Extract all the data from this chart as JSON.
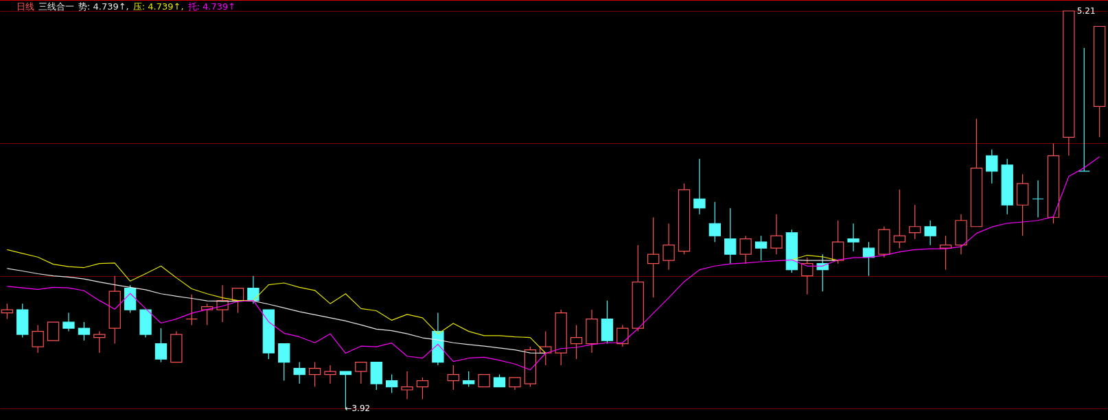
{
  "chart_data": {
    "type": "candlestick",
    "title": "日线",
    "subtitle": "三线合一",
    "annotations": [
      "势: 4.739↑,",
      "压: 4.739↑,",
      "托: 4.739↑",
      "←3.92",
      "5.21"
    ],
    "categories": [
      null,
      null,
      null,
      null,
      null,
      null,
      null,
      null,
      null,
      null,
      null,
      null,
      null,
      null,
      null,
      null,
      null,
      null,
      null,
      null,
      null,
      null,
      null,
      null,
      null,
      null,
      null,
      null,
      null,
      null,
      null,
      null,
      null,
      null,
      null,
      null,
      null,
      null,
      null,
      null,
      null,
      null,
      null,
      null,
      null,
      null,
      null,
      null,
      null,
      null,
      null,
      null,
      null,
      null,
      null,
      null,
      null,
      null,
      null,
      null,
      null,
      null,
      null,
      null,
      null,
      null,
      null,
      null,
      null,
      null,
      null,
      null
    ],
    "ohlc": [
      [
        4.23,
        4.26,
        4.21,
        4.24
      ],
      [
        4.24,
        4.26,
        4.15,
        4.16
      ],
      [
        4.12,
        4.19,
        4.1,
        4.17
      ],
      [
        4.14,
        4.2,
        4.14,
        4.2
      ],
      [
        4.2,
        4.23,
        4.17,
        4.18
      ],
      [
        4.18,
        4.2,
        4.14,
        4.16
      ],
      [
        4.15,
        4.17,
        4.1,
        4.16
      ],
      [
        4.18,
        4.35,
        4.13,
        4.3
      ],
      [
        4.31,
        4.32,
        4.23,
        4.24
      ],
      [
        4.24,
        4.24,
        4.15,
        4.16
      ],
      [
        4.13,
        4.18,
        4.07,
        4.08
      ],
      [
        4.07,
        4.17,
        4.07,
        4.16
      ],
      [
        4.21,
        4.29,
        4.19,
        4.21
      ],
      [
        4.24,
        4.26,
        4.19,
        4.25
      ],
      [
        4.24,
        4.32,
        4.2,
        4.27
      ],
      [
        4.27,
        4.31,
        4.23,
        4.31
      ],
      [
        4.31,
        4.35,
        4.26,
        4.27
      ],
      [
        4.24,
        4.24,
        4.08,
        4.1
      ],
      [
        4.13,
        4.13,
        4.01,
        4.07
      ],
      [
        4.05,
        4.07,
        4.0,
        4.03
      ],
      [
        4.03,
        4.07,
        3.99,
        4.05
      ],
      [
        4.03,
        4.06,
        4.0,
        4.04
      ],
      [
        4.04,
        4.04,
        3.92,
        4.03
      ],
      [
        4.04,
        4.07,
        4.0,
        4.07
      ],
      [
        4.07,
        4.07,
        3.98,
        4.0
      ],
      [
        4.01,
        4.03,
        3.97,
        3.99
      ],
      [
        3.98,
        4.04,
        3.95,
        3.99
      ],
      [
        3.99,
        4.02,
        3.95,
        4.01
      ],
      [
        4.17,
        4.23,
        4.06,
        4.07
      ],
      [
        4.01,
        4.06,
        3.98,
        4.03
      ],
      [
        4.01,
        4.04,
        3.99,
        4.0
      ],
      [
        3.99,
        4.03,
        3.99,
        4.03
      ],
      [
        4.02,
        4.03,
        3.99,
        3.99
      ],
      [
        3.99,
        4.02,
        3.98,
        4.02
      ],
      [
        4.0,
        4.12,
        3.99,
        4.11
      ],
      [
        4.1,
        4.17,
        4.06,
        4.12
      ],
      [
        4.1,
        4.24,
        4.06,
        4.23
      ],
      [
        4.13,
        4.19,
        4.08,
        4.15
      ],
      [
        4.13,
        4.24,
        4.1,
        4.21
      ],
      [
        4.21,
        4.27,
        4.13,
        4.14
      ],
      [
        4.13,
        4.19,
        4.12,
        4.18
      ],
      [
        4.18,
        4.45,
        4.17,
        4.33
      ],
      [
        4.39,
        4.54,
        4.28,
        4.42
      ],
      [
        4.4,
        4.52,
        4.37,
        4.45
      ],
      [
        4.43,
        4.65,
        4.42,
        4.63
      ],
      [
        4.6,
        4.73,
        4.55,
        4.57
      ],
      [
        4.52,
        4.59,
        4.46,
        4.48
      ],
      [
        4.47,
        4.57,
        4.39,
        4.42
      ],
      [
        4.42,
        4.48,
        4.39,
        4.47
      ],
      [
        4.46,
        4.48,
        4.4,
        4.44
      ],
      [
        4.44,
        4.55,
        4.42,
        4.48
      ],
      [
        4.49,
        4.5,
        4.36,
        4.37
      ],
      [
        4.35,
        4.41,
        4.29,
        4.39
      ],
      [
        4.39,
        4.42,
        4.3,
        4.37
      ],
      [
        4.4,
        4.53,
        4.39,
        4.46
      ],
      [
        4.47,
        4.52,
        4.43,
        4.46
      ],
      [
        4.44,
        4.46,
        4.35,
        4.41
      ],
      [
        4.42,
        4.51,
        4.41,
        4.5
      ],
      [
        4.46,
        4.63,
        4.44,
        4.48
      ],
      [
        4.49,
        4.58,
        4.47,
        4.51
      ],
      [
        4.51,
        4.53,
        4.45,
        4.48
      ],
      [
        4.44,
        4.48,
        4.37,
        4.45
      ],
      [
        4.45,
        4.55,
        4.42,
        4.53
      ],
      [
        4.51,
        4.86,
        4.51,
        4.7
      ],
      [
        4.74,
        4.76,
        4.65,
        4.69
      ],
      [
        4.71,
        4.73,
        4.55,
        4.58
      ],
      [
        4.58,
        4.68,
        4.48,
        4.65
      ],
      [
        4.6,
        4.66,
        4.54,
        4.6
      ],
      [
        4.54,
        4.78,
        4.52,
        4.74
      ],
      [
        4.8,
        5.21,
        4.74,
        5.21
      ],
      [
        4.69,
        5.09,
        4.69,
        4.69
      ],
      [
        4.9,
        5.16,
        4.8,
        5.16
      ]
    ],
    "colors": [
      "#ff5555",
      "#54fcfc",
      "#ff5555",
      "#ff5555",
      "#54fcfc",
      "#54fcfc",
      "#ff5555",
      "#ff5555",
      "#54fcfc",
      "#54fcfc",
      "#54fcfc",
      "#ff5555",
      "#ff5555",
      "#ff5555",
      "#ff5555",
      "#ff5555",
      "#54fcfc",
      "#54fcfc",
      "#54fcfc",
      "#54fcfc",
      "#ff5555",
      "#ff5555",
      "#54fcfc",
      "#ff5555",
      "#54fcfc",
      "#54fcfc",
      "#ff5555",
      "#ff5555",
      "#54fcfc",
      "#ff5555",
      "#54fcfc",
      "#ff5555",
      "#54fcfc",
      "#ff5555",
      "#ff5555",
      "#ff5555",
      "#ff5555",
      "#ff5555",
      "#ff5555",
      "#54fcfc",
      "#ff5555",
      "#ff5555",
      "#ff5555",
      "#ff5555",
      "#ff5555",
      "#54fcfc",
      "#54fcfc",
      "#54fcfc",
      "#ff5555",
      "#54fcfc",
      "#ff5555",
      "#54fcfc",
      "#ff5555",
      "#54fcfc",
      "#ff5555",
      "#54fcfc",
      "#54fcfc",
      "#ff5555",
      "#ff5555",
      "#ff5555",
      "#54fcfc",
      "#ff5555",
      "#ff5555",
      "#ff5555",
      "#54fcfc",
      "#54fcfc",
      "#ff5555",
      "#54fcfc",
      "#ff5555",
      "#ff5555",
      "#54fcfc",
      "#ff5555"
    ],
    "series": [
      {
        "type": "line",
        "color": "#e8e8e8",
        "values": [
          4.374,
          4.366,
          4.357,
          4.35,
          4.346,
          4.34,
          4.33,
          4.321,
          4.313,
          4.305,
          4.292,
          4.284,
          4.277,
          4.269,
          4.268,
          4.268,
          4.269,
          4.258,
          4.246,
          4.234,
          4.224,
          4.214,
          4.204,
          4.191,
          4.177,
          4.172,
          4.162,
          4.149,
          4.142,
          4.133,
          4.127,
          4.122,
          4.116,
          4.11,
          4.1,
          4.099,
          null,
          null,
          null,
          null,
          null,
          null,
          null,
          null,
          null,
          null,
          null,
          null,
          null,
          null,
          null,
          4.402,
          4.4,
          4.4,
          4.4,
          null,
          null,
          null,
          null,
          null,
          null,
          null,
          null,
          null,
          null,
          null,
          null,
          null,
          null,
          null,
          null,
          null
        ]
      },
      {
        "type": "line",
        "color": "#e6e600",
        "values": [
          4.435,
          4.423,
          4.411,
          4.388,
          4.38,
          4.377,
          4.39,
          4.392,
          4.333,
          4.357,
          4.382,
          4.344,
          4.308,
          4.292,
          4.279,
          4.27,
          4.27,
          4.321,
          4.327,
          4.313,
          4.303,
          4.26,
          4.292,
          4.244,
          4.237,
          4.206,
          4.225,
          4.214,
          4.162,
          4.196,
          4.17,
          4.156,
          4.156,
          4.152,
          4.15,
          4.099,
          null,
          null,
          null,
          null,
          null,
          null,
          null,
          null,
          null,
          null,
          null,
          null,
          null,
          null,
          null,
          4.402,
          4.417,
          4.412,
          4.4,
          null,
          null,
          null,
          null,
          null,
          null,
          null,
          null,
          null,
          null,
          null,
          null,
          null,
          null,
          null,
          null,
          null
        ]
      },
      {
        "type": "line",
        "color": "#ff00ff",
        "values": [
          4.316,
          4.311,
          4.306,
          4.313,
          4.311,
          4.302,
          4.27,
          4.242,
          4.293,
          4.244,
          4.197,
          4.21,
          4.229,
          4.241,
          4.252,
          4.267,
          4.27,
          4.201,
          4.164,
          4.152,
          4.133,
          4.162,
          4.099,
          4.122,
          4.12,
          4.132,
          4.089,
          4.083,
          4.128,
          4.072,
          4.083,
          4.086,
          4.076,
          4.064,
          4.045,
          4.099,
          4.114,
          4.118,
          4.127,
          4.133,
          4.133,
          4.179,
          4.229,
          4.279,
          4.331,
          4.37,
          4.382,
          4.389,
          4.392,
          4.396,
          4.399,
          4.402,
          4.382,
          4.382,
          4.402,
          4.409,
          4.41,
          4.417,
          4.428,
          4.435,
          4.438,
          4.438,
          4.445,
          4.488,
          4.509,
          4.521,
          4.525,
          4.53,
          4.542,
          4.673,
          4.701,
          4.737
        ]
      }
    ],
    "ylim": [
      3.92,
      5.21
    ],
    "yticks": [
      {
        "value": 3.92,
        "label": null
      },
      {
        "value": 4.35,
        "label": null
      },
      {
        "value": 4.78,
        "label": null
      },
      {
        "value": 5.21,
        "label": null
      }
    ],
    "grid": "y"
  }
}
